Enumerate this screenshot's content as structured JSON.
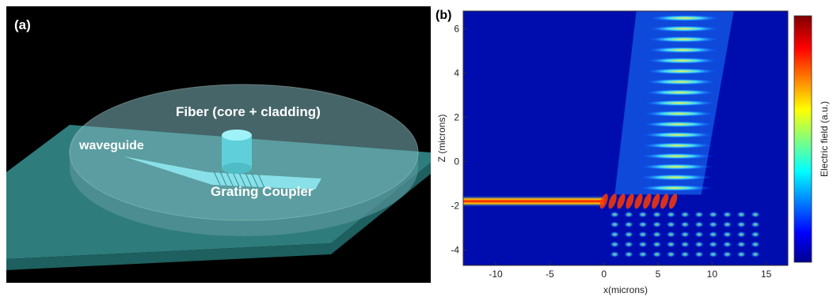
{
  "panel_a": {
    "label": "(a)",
    "fiber_label": "Fiber (core + cladding)",
    "waveguide_label": "waveguide",
    "grating_label": "Grating Coupler"
  },
  "panel_b": {
    "label": "(b)"
  },
  "chart_data": {
    "type": "heatmap",
    "title": "",
    "xlabel": "x(microns)",
    "ylabel": "Z (microns)",
    "colorbar_label": "Electric field (a.u.)",
    "colormap": "jet",
    "xlim": [
      -13,
      17
    ],
    "ylim": [
      -4.7,
      6.8
    ],
    "xticks": [
      -10,
      -5,
      0,
      5,
      10,
      15
    ],
    "yticks": [
      -4,
      -2,
      0,
      2,
      4,
      6
    ],
    "grid": false,
    "colorbar_position": "right",
    "colors": {
      "low": "#00008f",
      "mid": "#40c0ff",
      "high": "#ff2000",
      "max": "#7f0000"
    }
  }
}
